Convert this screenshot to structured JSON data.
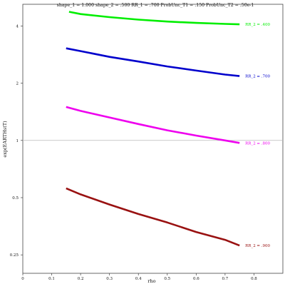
{
  "chart_data": {
    "type": "line",
    "title": "shape_1 = 1.000  shape_2 = .500  RR_1 = .700  ProbUnc_T1 = .150  ProbUnc_T2 = .50e-1",
    "xlabel": "rho",
    "ylabel": "exp(EARTHstT)",
    "x_scale": "linear",
    "y_scale": "log",
    "xlim": [
      0,
      0.9
    ],
    "ylim": [
      0.2,
      5.2
    ],
    "xticks": [
      0,
      0.1,
      0.2,
      0.3,
      0.4,
      0.5,
      0.6,
      0.7,
      0.8
    ],
    "xtick_labels": [
      "0",
      "0.1",
      "0.2",
      "0.3",
      "0.4",
      "0.5",
      "0.6",
      "0.7",
      "0.8"
    ],
    "yticks": [
      0.25,
      0.5,
      1,
      2,
      4
    ],
    "ytick_labels": [
      "0.25",
      "0.5",
      "1",
      "2",
      "4"
    ],
    "reference_line": {
      "y": 1,
      "color": "#bbbbbb"
    },
    "grid": false,
    "series": [
      {
        "name": "RR_2 = .400",
        "color": "#00ee00",
        "label_color": "#00ee00",
        "x": [
          0.16,
          0.2,
          0.3,
          0.4,
          0.5,
          0.6,
          0.7,
          0.75
        ],
        "y": [
          4.75,
          4.62,
          4.45,
          4.32,
          4.22,
          4.15,
          4.1,
          4.08
        ]
      },
      {
        "name": "RR_2 = .700",
        "color": "#0000cc",
        "label_color": "#0000cc",
        "x": [
          0.15,
          0.2,
          0.3,
          0.4,
          0.5,
          0.6,
          0.7,
          0.75
        ],
        "y": [
          3.05,
          2.95,
          2.75,
          2.6,
          2.45,
          2.33,
          2.22,
          2.18
        ]
      },
      {
        "name": "RR_2 = .800",
        "color": "#ee00ee",
        "label_color": "#ee00ee",
        "x": [
          0.15,
          0.2,
          0.3,
          0.4,
          0.5,
          0.6,
          0.7,
          0.75
        ],
        "y": [
          1.5,
          1.43,
          1.32,
          1.22,
          1.13,
          1.06,
          1.0,
          0.97
        ]
      },
      {
        "name": "RR_2 = .900",
        "color": "#991111",
        "label_color": "#991111",
        "x": [
          0.15,
          0.2,
          0.3,
          0.4,
          0.5,
          0.6,
          0.7,
          0.75
        ],
        "y": [
          0.56,
          0.52,
          0.46,
          0.41,
          0.37,
          0.33,
          0.3,
          0.28
        ]
      }
    ],
    "label_colors_note_omitted": true
  }
}
